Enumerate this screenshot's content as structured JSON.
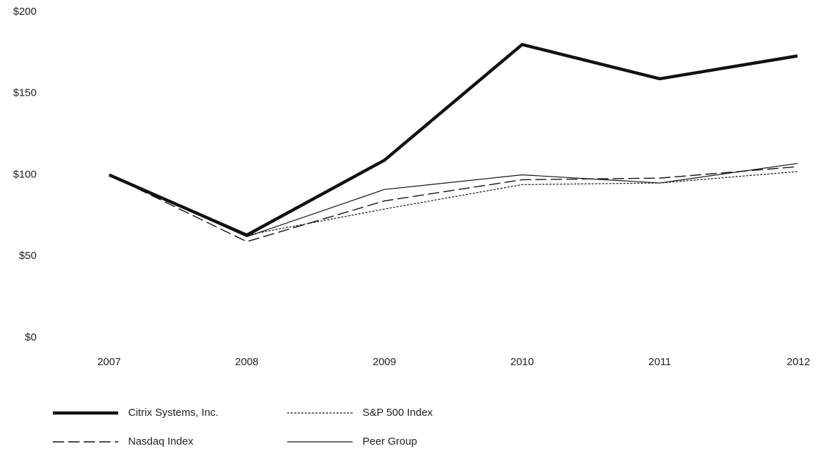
{
  "chart_data": {
    "type": "line",
    "x": [
      "2007",
      "2008",
      "2009",
      "2010",
      "2011",
      "2012"
    ],
    "ylim": [
      0,
      200
    ],
    "yticks": [
      {
        "value": 0,
        "label": "$0"
      },
      {
        "value": 50,
        "label": "$50"
      },
      {
        "value": 100,
        "label": "$100"
      },
      {
        "value": 150,
        "label": "$150"
      },
      {
        "value": 200,
        "label": "$200"
      }
    ],
    "grid": false,
    "legend": "bottom",
    "series": [
      {
        "name": "Citrix Systems, Inc.",
        "color": "#111111",
        "line_style": "solid",
        "line_width": 4.5,
        "values": [
          100,
          63,
          109,
          180,
          159,
          173
        ]
      },
      {
        "name": "S&P 500 Index",
        "color": "#111111",
        "line_style": "dotted",
        "line_width": 1.2,
        "values": [
          100,
          63,
          79,
          94,
          95,
          102
        ]
      },
      {
        "name": "Nasdaq Index",
        "color": "#111111",
        "line_style": "dashed",
        "line_width": 1.4,
        "values": [
          100,
          59,
          84,
          97,
          98,
          105
        ]
      },
      {
        "name": "Peer Group",
        "color": "#111111",
        "line_style": "solid",
        "line_width": 1.2,
        "values": [
          100,
          62,
          91,
          100,
          95,
          107
        ]
      }
    ]
  }
}
